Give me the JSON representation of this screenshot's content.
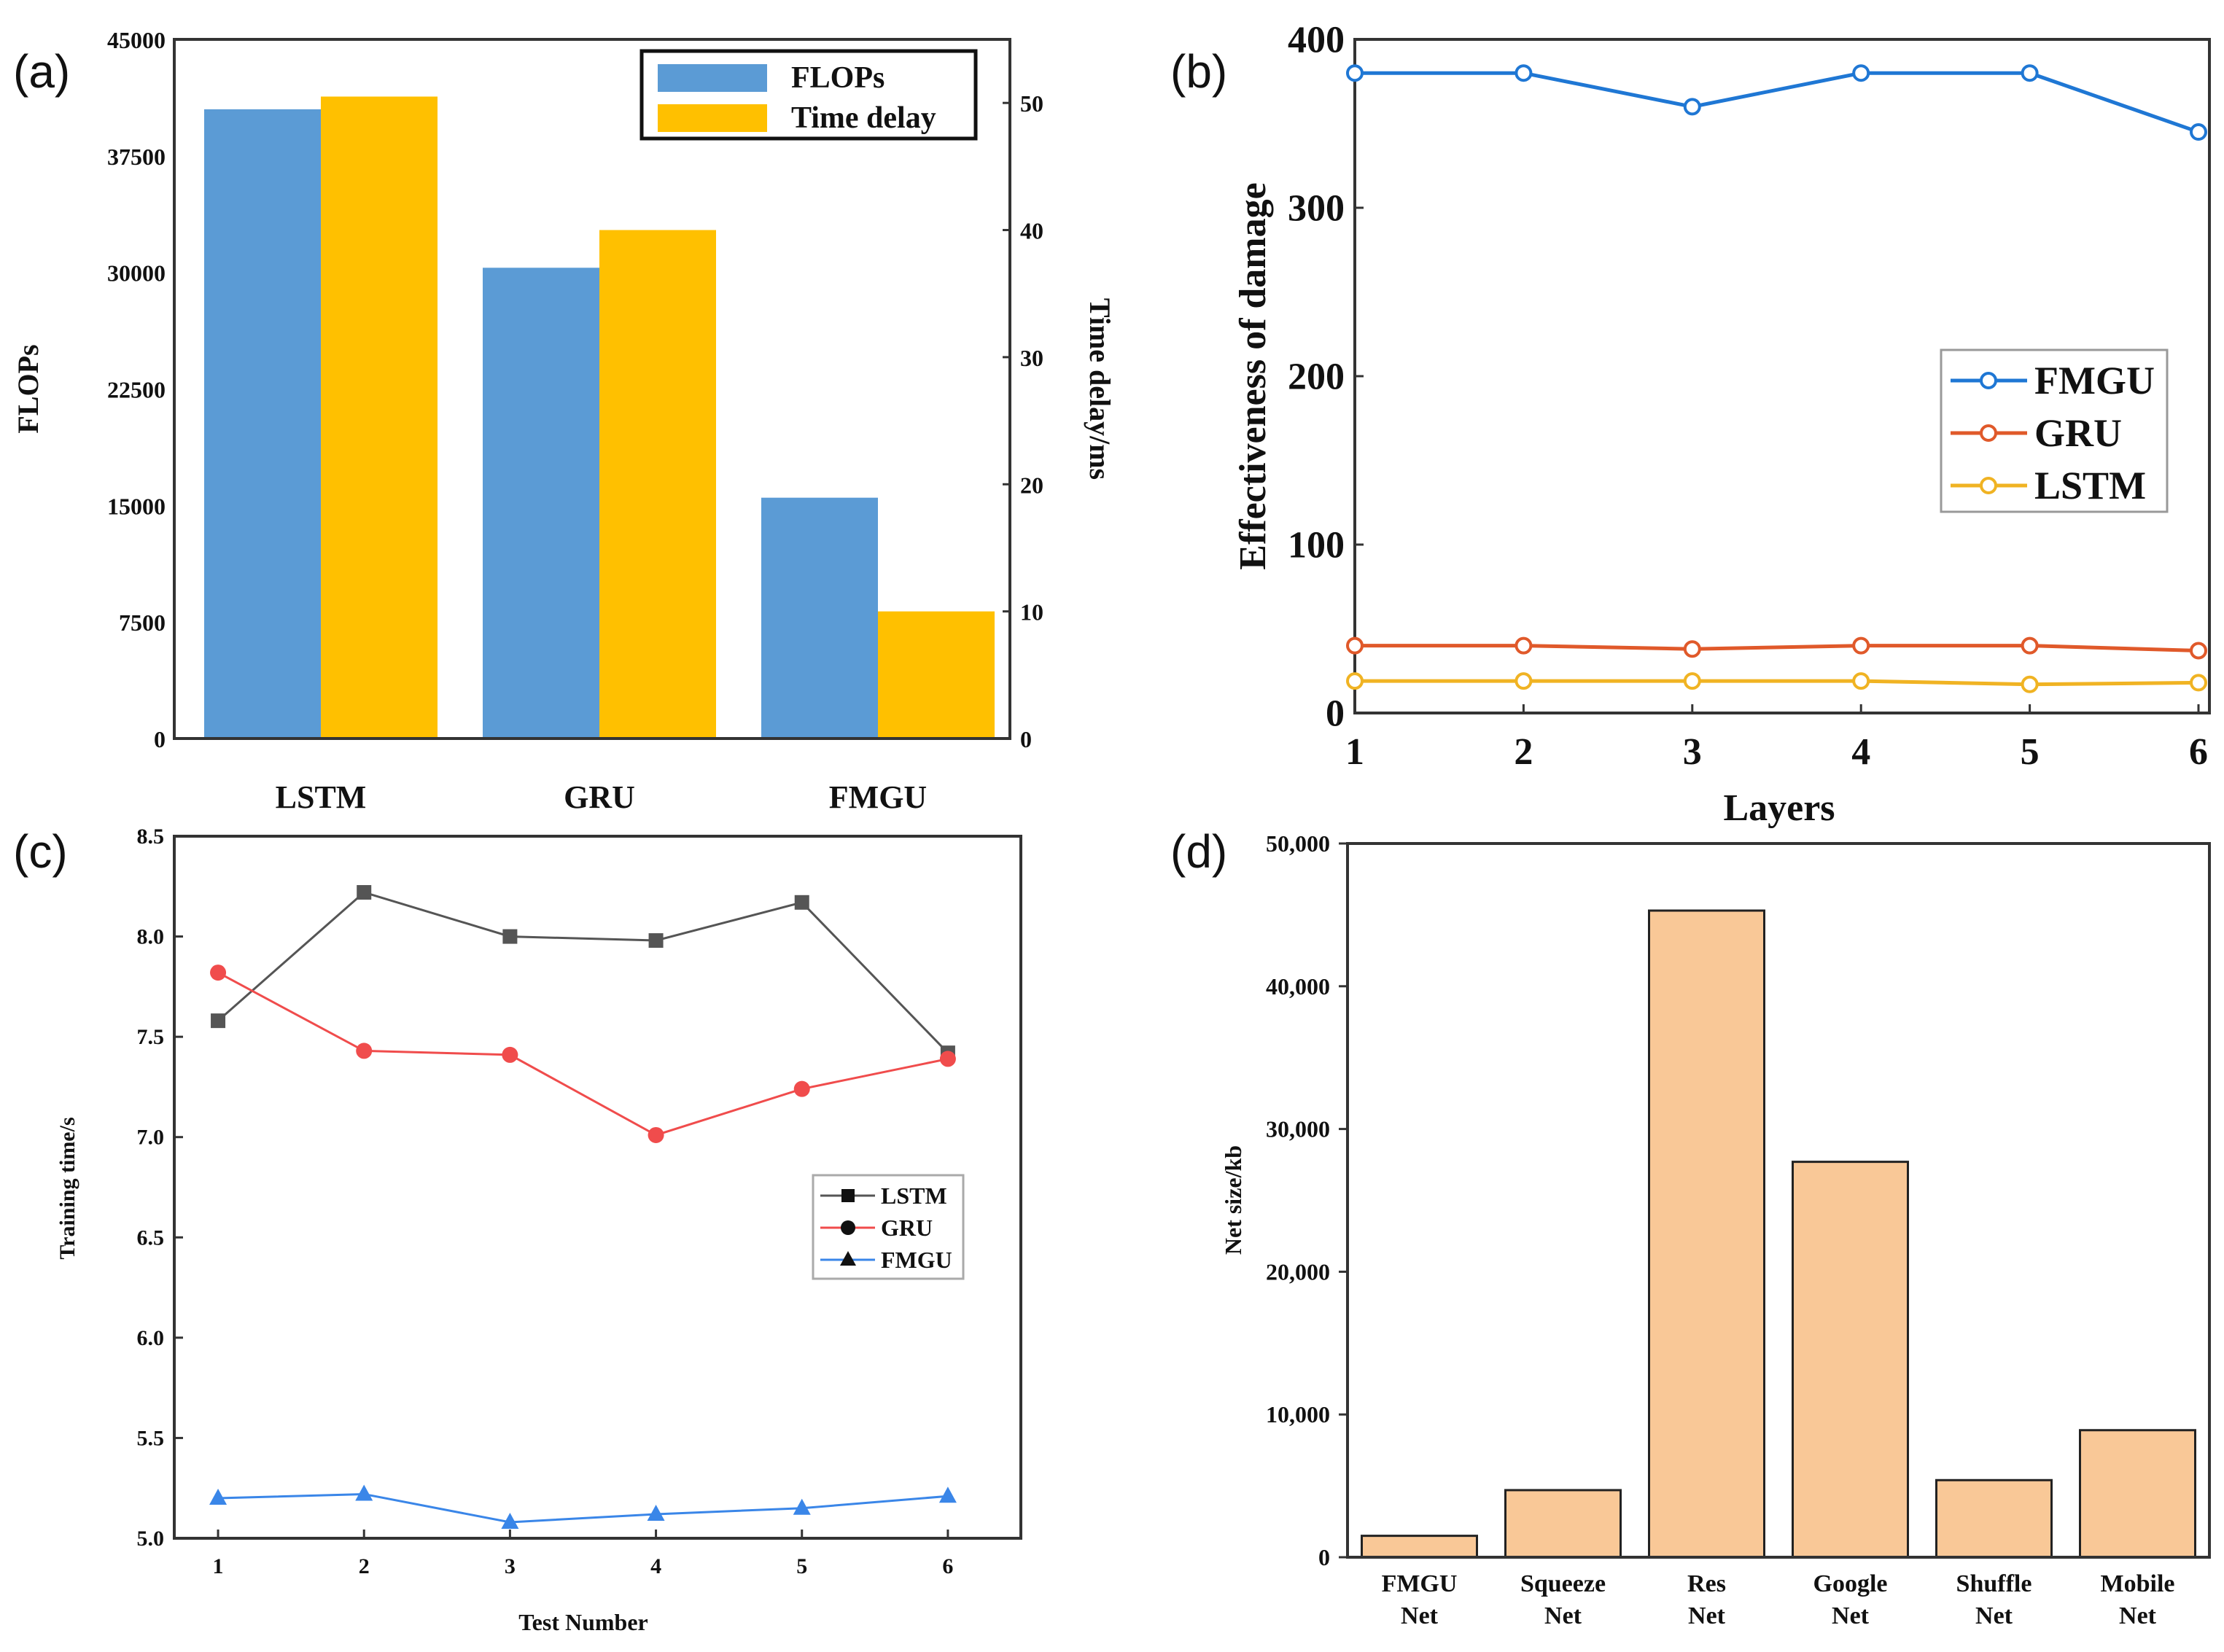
{
  "chart_data": [
    {
      "panel": "(a)",
      "type": "bar",
      "categories": [
        "LSTM",
        "GRU",
        "FMGU"
      ],
      "series": [
        {
          "name": "FLOPs",
          "axis": "left",
          "color": "#5b9bd5",
          "values": [
            40500,
            30300,
            15500
          ]
        },
        {
          "name": "Time delay",
          "axis": "right",
          "color": "#ffc000",
          "values": [
            50.5,
            40,
            10
          ]
        }
      ],
      "ylabel": "FLOPs",
      "y2label": "Time delay/ms",
      "ylim": [
        0,
        45000
      ],
      "y2lim": [
        0,
        55
      ],
      "yticks": [
        "0",
        "7500",
        "15000",
        "22500",
        "30000",
        "37500",
        "45000"
      ],
      "y2ticks": [
        "0",
        "10",
        "20",
        "30",
        "40",
        "50"
      ],
      "legend": "top-right",
      "grid": false
    },
    {
      "panel": "(b)",
      "type": "line",
      "x": [
        1,
        2,
        3,
        4,
        5,
        6
      ],
      "series": [
        {
          "name": "FMGU",
          "color": "#1f77d4",
          "values": [
            380,
            380,
            360,
            380,
            380,
            345
          ]
        },
        {
          "name": "GRU",
          "color": "#e0592a",
          "values": [
            40,
            40,
            38,
            40,
            40,
            37
          ]
        },
        {
          "name": "LSTM",
          "color": "#f0b323",
          "values": [
            19,
            19,
            19,
            19,
            17,
            18
          ]
        }
      ],
      "xlabel": "Layers",
      "ylabel": "Effectiveness of damage",
      "ylim": [
        0,
        400
      ],
      "xlim": [
        1,
        6
      ],
      "yticks": [
        "0",
        "100",
        "200",
        "300",
        "400"
      ],
      "xticks": [
        "1",
        "2",
        "3",
        "4",
        "5",
        "6"
      ],
      "legend": "right",
      "grid": false
    },
    {
      "panel": "(c)",
      "type": "line",
      "x": [
        1,
        2,
        3,
        4,
        5,
        6
      ],
      "series": [
        {
          "name": "LSTM",
          "color": "#555555",
          "marker": "square",
          "values": [
            7.58,
            8.22,
            8.0,
            7.98,
            8.17,
            7.42
          ]
        },
        {
          "name": "GRU",
          "color": "#f04c4c",
          "marker": "circle",
          "values": [
            7.82,
            7.43,
            7.41,
            7.01,
            7.24,
            7.39
          ]
        },
        {
          "name": "FMGU",
          "color": "#3a86e8",
          "marker": "triangle",
          "values": [
            5.2,
            5.22,
            5.08,
            5.12,
            5.15,
            5.21
          ]
        }
      ],
      "xlabel": "Test Number",
      "ylabel": "Training time/s",
      "ylim": [
        5.0,
        8.5
      ],
      "xlim": [
        0.7,
        6.5
      ],
      "yticks": [
        "5.0",
        "5.5",
        "6.0",
        "6.5",
        "7.0",
        "7.5",
        "8.0",
        "8.5"
      ],
      "xticks": [
        "1",
        "2",
        "3",
        "4",
        "5",
        "6"
      ],
      "legend": "right",
      "grid": false
    },
    {
      "panel": "(d)",
      "type": "bar",
      "categories": [
        "FMGU Net",
        "Squeeze Net",
        "Res Net",
        "Google Net",
        "Shuffle Net",
        "Mobile Net"
      ],
      "values": [
        1500,
        4700,
        45300,
        27700,
        5400,
        8900
      ],
      "color": "#f9c897",
      "ylabel": "Net size/kb",
      "ylim": [
        0,
        50000
      ],
      "yticks": [
        "0",
        "10,000",
        "20,000",
        "30,000",
        "40,000",
        "50,000"
      ],
      "grid": false
    }
  ]
}
